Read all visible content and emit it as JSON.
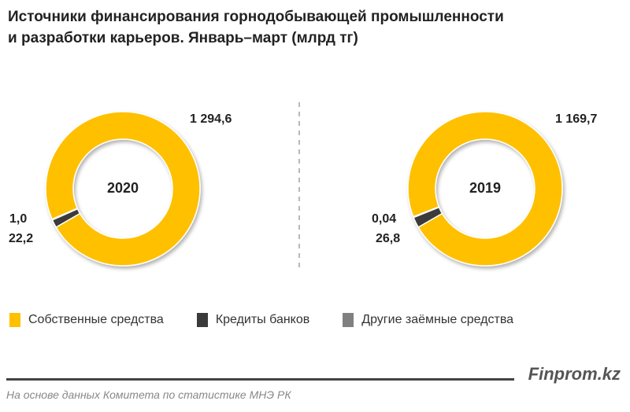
{
  "title_line1": "Источники финансирования  горнодобывающей промышленности",
  "title_line2": "и разработки карьеров. Январь–март (млрд тг)",
  "chart_data": [
    {
      "type": "pie",
      "variant": "donut",
      "center_label": "2020",
      "categories": [
        "Собственные средства",
        "Кредиты банков",
        "Другие заёмные средства"
      ],
      "values": [
        1294.6,
        22.2,
        1.0
      ],
      "data_labels": [
        "1 294,6",
        "22,2",
        "1,0"
      ]
    },
    {
      "type": "pie",
      "variant": "donut",
      "center_label": "2019",
      "categories": [
        "Собственные средства",
        "Кредиты банков",
        "Другие заёмные средства"
      ],
      "values": [
        1169.7,
        26.8,
        0.04
      ],
      "data_labels": [
        "1 169,7",
        "26,8",
        "0,04"
      ]
    }
  ],
  "colors": [
    "#FFC000",
    "#3A3A3A",
    "#808080"
  ],
  "legend": [
    "Собственные средства",
    "Кредиты банков",
    "Другие заёмные средства"
  ],
  "brand": "Finprom.kz",
  "source": "На основе данных  Комитета по статистике МНЭ РК"
}
